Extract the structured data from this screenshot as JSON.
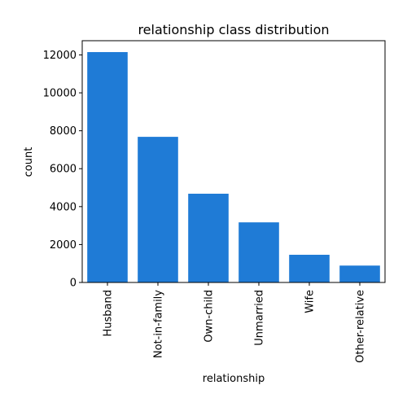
{
  "chart_data": {
    "type": "bar",
    "title": "relationship class distribution",
    "xlabel": "relationship",
    "ylabel": "count",
    "categories": [
      "Husband",
      "Not-in-family",
      "Own-child",
      "Unmarried",
      "Wife",
      "Other-relative"
    ],
    "values": [
      12150,
      7680,
      4680,
      3170,
      1460,
      890
    ],
    "ylim": [
      0,
      12750
    ],
    "yticks": [
      0,
      2000,
      4000,
      6000,
      8000,
      10000,
      12000
    ],
    "bar_color": "#1f7bd6",
    "grid": false,
    "legend": "none"
  }
}
